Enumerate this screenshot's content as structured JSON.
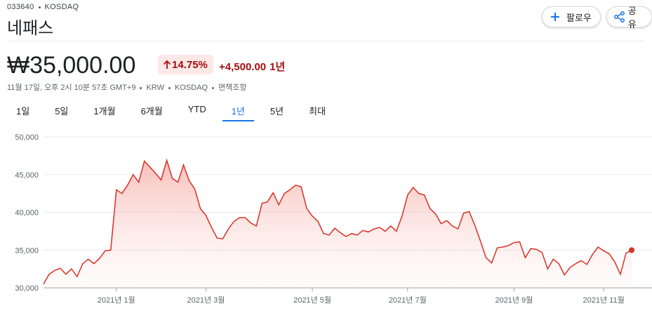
{
  "header": {
    "ticker": "033640",
    "exchange": "KOSDAQ",
    "name": "네패스",
    "buttons": [
      "팔로우",
      "공유"
    ]
  },
  "quote": {
    "price": "₩35,000.00",
    "change_percent": "14.75%",
    "change": "+4,500.00",
    "period": "1년",
    "info": [
      "11월 17일, 오후 2시 10분 57초 GMT+9",
      "KRW",
      "KOSDAQ",
      "면책조항"
    ]
  },
  "tabs": {
    "items": [
      "1일",
      "5일",
      "1개월",
      "6개월",
      "YTD",
      "1년",
      "5년",
      "최대"
    ],
    "selected": 5
  },
  "chart_data": {
    "type": "line",
    "color": "#d93025",
    "grid": true,
    "ylim": [
      30000,
      50000
    ],
    "yticks": [
      {
        "value": 30000,
        "label": "30,000"
      },
      {
        "value": 35000,
        "label": "35,000"
      },
      {
        "value": 40000,
        "label": "40,000"
      },
      {
        "value": 45000,
        "label": "45,000"
      },
      {
        "value": 50000,
        "label": "50,000"
      }
    ],
    "categories": [
      null,
      null,
      null,
      null,
      null,
      null,
      null,
      null,
      null,
      null,
      null,
      null,
      null,
      "2021년 1월",
      null,
      null,
      null,
      null,
      null,
      null,
      null,
      null,
      null,
      null,
      null,
      null,
      null,
      null,
      null,
      "2021년 3월",
      null,
      null,
      null,
      null,
      null,
      null,
      null,
      null,
      null,
      null,
      null,
      null,
      null,
      null,
      null,
      null,
      null,
      null,
      "2021년 5월",
      null,
      null,
      null,
      null,
      null,
      null,
      null,
      null,
      null,
      null,
      null,
      null,
      null,
      null,
      null,
      null,
      "2021년 7월",
      null,
      null,
      null,
      null,
      null,
      null,
      null,
      null,
      null,
      null,
      null,
      null,
      null,
      null,
      null,
      null,
      null,
      null,
      "2021년 9월",
      null,
      null,
      null,
      null,
      null,
      null,
      null,
      null,
      null,
      null,
      null,
      null,
      null,
      null,
      null,
      "2021년 11월",
      null,
      null,
      null,
      null,
      null
    ],
    "values": [
      30500,
      31800,
      32300,
      32600,
      31800,
      32500,
      31500,
      33200,
      33800,
      33200,
      33900,
      34900,
      35000,
      43000,
      42500,
      43600,
      45000,
      44000,
      46800,
      46000,
      45200,
      44300,
      46900,
      44500,
      44000,
      46300,
      44200,
      43100,
      40500,
      39600,
      38000,
      36600,
      36500,
      37800,
      38800,
      39300,
      39300,
      38600,
      38200,
      41200,
      41400,
      42600,
      41000,
      42500,
      43000,
      43600,
      43400,
      40500,
      39500,
      38800,
      37200,
      37000,
      37900,
      37300,
      36800,
      37200,
      37000,
      37600,
      37400,
      37800,
      38000,
      37500,
      38200,
      37500,
      39500,
      42300,
      43300,
      42500,
      42300,
      40500,
      39800,
      38500,
      38900,
      38200,
      37800,
      39900,
      40100,
      38300,
      36200,
      34000,
      33300,
      35300,
      35400,
      35600,
      36000,
      36100,
      34000,
      35200,
      35100,
      34700,
      32500,
      33800,
      33200,
      31700,
      32700,
      33200,
      33600,
      33100,
      34400,
      35400,
      34900,
      34500,
      33400,
      31800,
      34600,
      35000
    ]
  }
}
